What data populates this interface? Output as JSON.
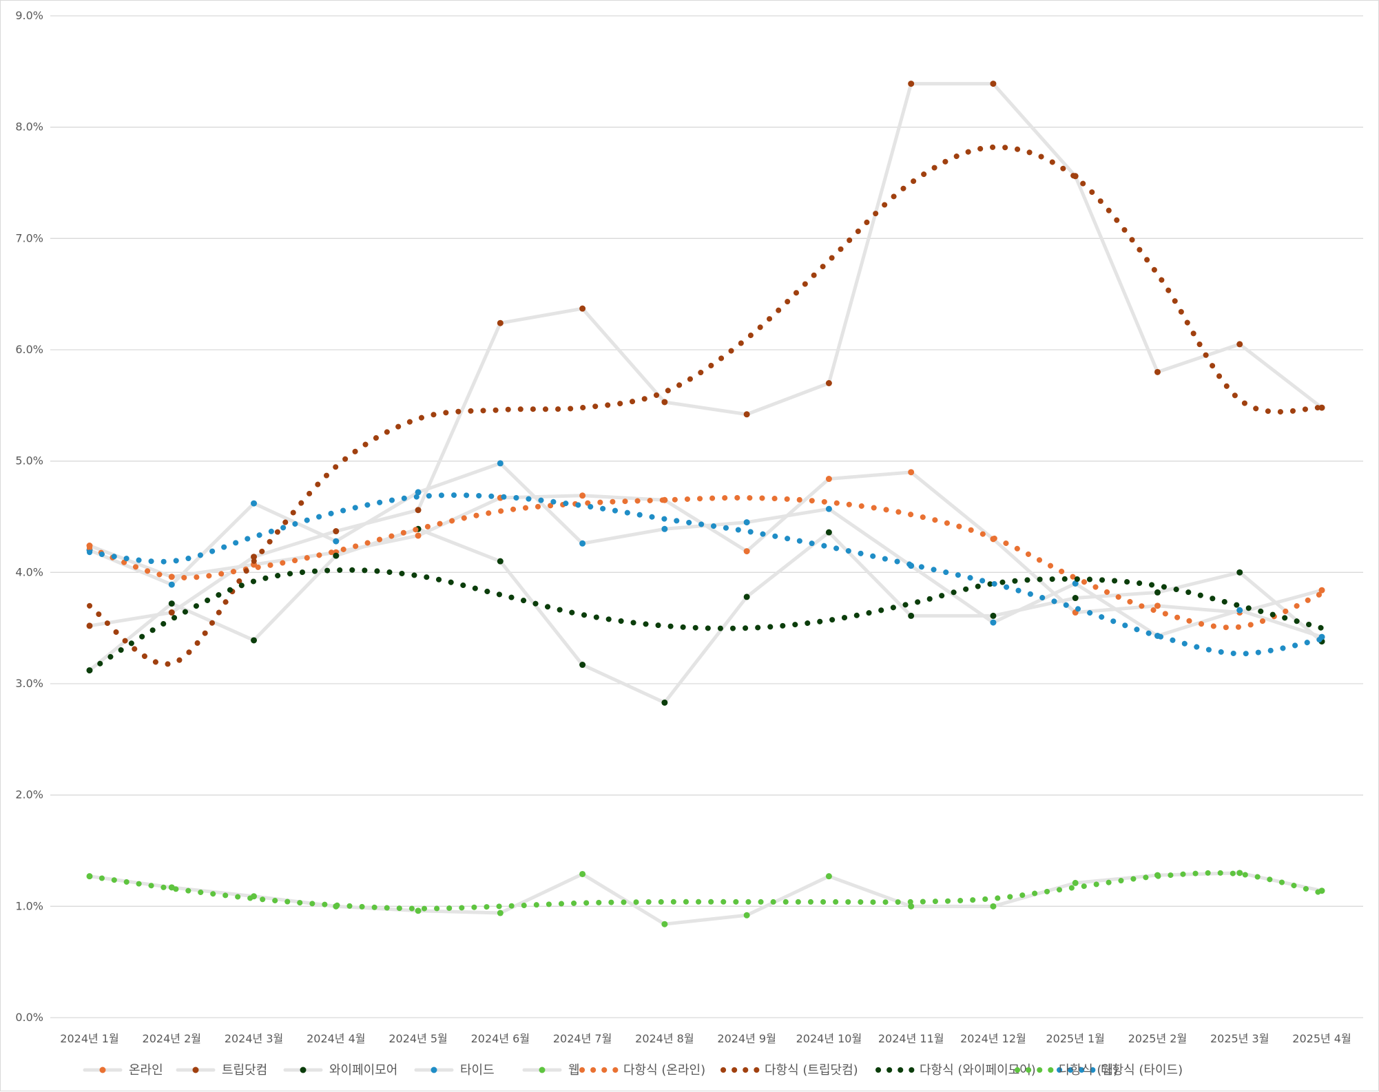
{
  "chart_data": {
    "type": "line",
    "title": "",
    "xlabel": "",
    "ylabel": "",
    "categories": [
      "2024년 1월",
      "2024년 2월",
      "2024년 3월",
      "2024년 4월",
      "2024년 5월",
      "2024년 6월",
      "2024년 7월",
      "2024년 8월",
      "2024년 9월",
      "2024년 10월",
      "2024년 11월",
      "2024년 12월",
      "2025년 1월",
      "2025년 2월",
      "2025년 3월",
      "2025년 4월"
    ],
    "ylim": [
      0,
      9
    ],
    "yticks": [
      0,
      1,
      2,
      3,
      4,
      5,
      6,
      7,
      8,
      9
    ],
    "ytick_labels": [
      "0.0%",
      "1.0%",
      "2.0%",
      "3.0%",
      "4.0%",
      "5.0%",
      "6.0%",
      "7.0%",
      "8.0%",
      "9.0%"
    ],
    "grid": true,
    "legend_position": "bottom",
    "series": [
      {
        "name": "온라인",
        "kind": "line",
        "color": "#e97132",
        "values": [
          4.24,
          3.96,
          4.07,
          4.18,
          4.33,
          4.67,
          4.69,
          4.65,
          4.19,
          4.84,
          4.9,
          4.3,
          3.64,
          3.7,
          3.64,
          3.84
        ]
      },
      {
        "name": "트립닷컴",
        "kind": "line",
        "color": "#a0400f",
        "values": [
          3.52,
          3.64,
          4.14,
          4.37,
          4.56,
          6.24,
          6.37,
          5.53,
          5.42,
          5.7,
          8.39,
          8.39,
          7.56,
          5.8,
          6.05,
          5.48
        ]
      },
      {
        "name": "와이페이모어",
        "kind": "line",
        "color": "#0b3d0b",
        "values": [
          3.12,
          3.72,
          3.39,
          4.15,
          4.39,
          4.1,
          3.17,
          2.83,
          3.78,
          4.36,
          3.61,
          3.61,
          3.77,
          3.82,
          4.0,
          3.38
        ]
      },
      {
        "name": "타이드",
        "kind": "line",
        "color": "#1f8dc6",
        "values": [
          4.2,
          3.89,
          4.62,
          4.28,
          4.72,
          4.98,
          4.26,
          4.39,
          4.45,
          4.57,
          4.06,
          3.55,
          3.9,
          3.43,
          3.66,
          3.42
        ]
      },
      {
        "name": "웹",
        "kind": "line",
        "color": "#5ec43f",
        "values": [
          1.27,
          1.17,
          1.09,
          1.0,
          0.96,
          0.94,
          1.29,
          0.84,
          0.92,
          1.27,
          1.0,
          1.0,
          1.21,
          1.28,
          1.3,
          1.14
        ]
      },
      {
        "name": "다항식 (온라인)",
        "kind": "trend",
        "color": "#e97132",
        "values": [
          4.22,
          3.96,
          4.04,
          4.19,
          4.39,
          4.55,
          4.62,
          4.65,
          4.67,
          4.63,
          4.52,
          4.31,
          3.95,
          3.65,
          3.51,
          3.81
        ]
      },
      {
        "name": "다항식 (트립닷컴)",
        "kind": "trend",
        "color": "#a0400f",
        "values": [
          3.7,
          3.18,
          4.1,
          4.95,
          5.38,
          5.46,
          5.48,
          5.62,
          6.1,
          6.8,
          7.5,
          7.82,
          7.55,
          6.68,
          5.55,
          5.48
        ]
      },
      {
        "name": "다항식 (와이페이모어)",
        "kind": "trend",
        "color": "#0b3d0b",
        "values": [
          3.12,
          3.58,
          3.92,
          4.02,
          3.97,
          3.8,
          3.62,
          3.52,
          3.5,
          3.57,
          3.72,
          3.9,
          3.94,
          3.88,
          3.7,
          3.5
        ]
      },
      {
        "name": "다항식 (타이드)",
        "kind": "trend",
        "color": "#1f8dc6",
        "values": [
          4.18,
          4.1,
          4.32,
          4.54,
          4.68,
          4.68,
          4.6,
          4.48,
          4.37,
          4.23,
          4.07,
          3.9,
          3.68,
          3.43,
          3.27,
          3.4
        ]
      },
      {
        "name": "다항식 (웹)",
        "kind": "trend",
        "color": "#5ec43f",
        "values": [
          1.27,
          1.16,
          1.07,
          1.01,
          0.98,
          1.0,
          1.03,
          1.04,
          1.04,
          1.04,
          1.04,
          1.07,
          1.17,
          1.27,
          1.29,
          1.12
        ]
      }
    ]
  }
}
